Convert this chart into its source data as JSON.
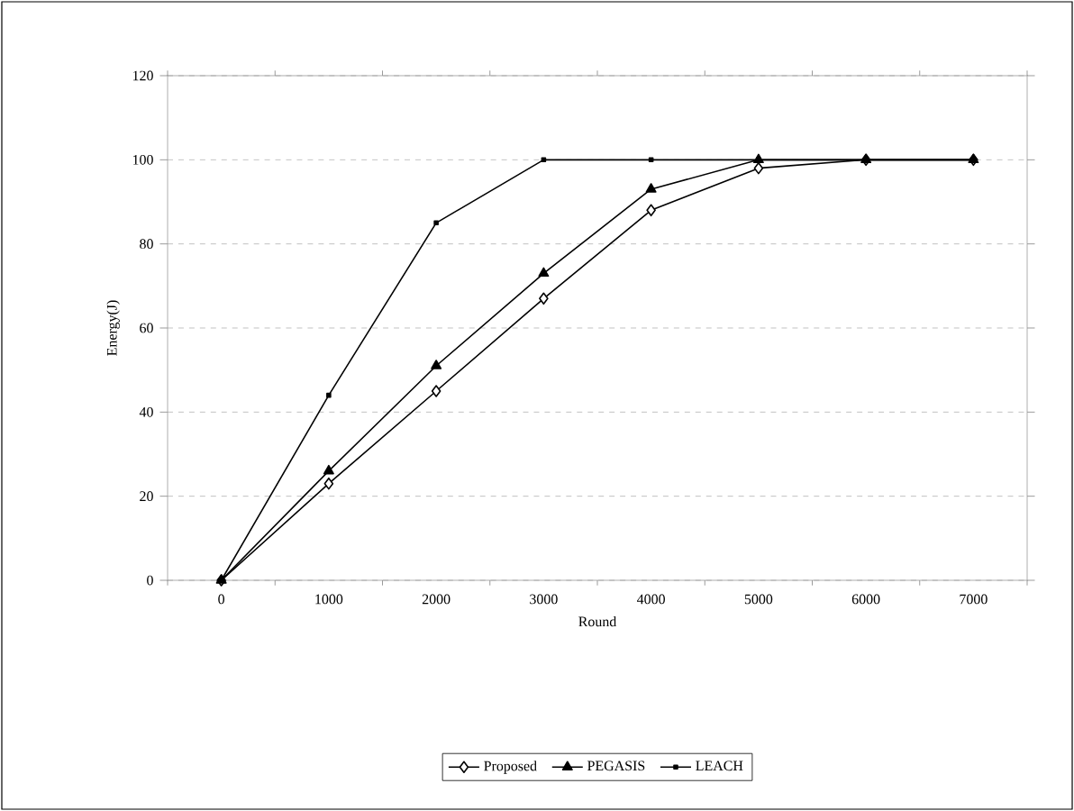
{
  "chart_data": {
    "type": "line",
    "xlabel": "Round",
    "ylabel": "Energy(J)",
    "categories": [
      "0",
      "1000",
      "2000",
      "3000",
      "4000",
      "5000",
      "6000",
      "7000"
    ],
    "series": [
      {
        "name": "Proposed",
        "color": "#000000",
        "marker": "diamond",
        "values": [
          0,
          23,
          45,
          67,
          88,
          98,
          100,
          100
        ]
      },
      {
        "name": "PEGASIS",
        "color": "#010101",
        "marker": "triangle",
        "values": [
          0,
          26,
          51,
          73,
          93,
          100,
          100,
          100
        ]
      },
      {
        "name": "LEACH",
        "color": "#020202",
        "marker": "square",
        "values": [
          0,
          44,
          85,
          100,
          100,
          100,
          100,
          100
        ]
      }
    ],
    "ylim": [
      0,
      120
    ],
    "yticks": [
      0,
      20,
      40,
      60,
      80,
      100,
      120
    ],
    "grid": "y",
    "legend": "bottom",
    "line_style": "solid"
  }
}
